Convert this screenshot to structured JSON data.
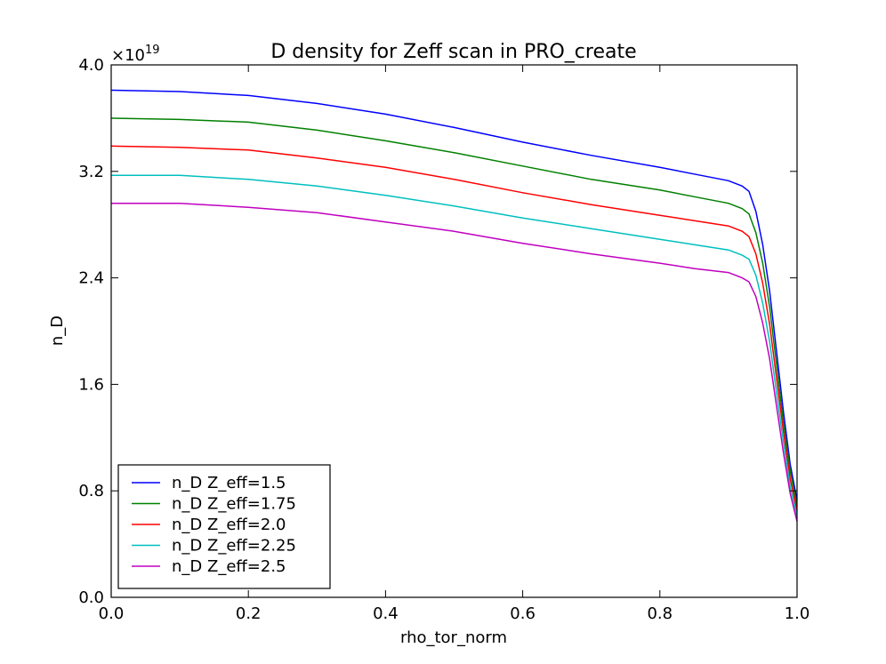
{
  "chart_data": {
    "type": "line",
    "title": "D density for Zeff scan in PRO_create",
    "xlabel": "rho_tor_norm",
    "ylabel": "n_D",
    "y_multiplier": "×10",
    "y_exponent": "19",
    "xlim": [
      0.0,
      1.0
    ],
    "ylim": [
      0.0,
      4.0
    ],
    "xticks": [
      "0.0",
      "0.2",
      "0.4",
      "0.6",
      "0.8",
      "1.0"
    ],
    "yticks": [
      "0.0",
      "0.8",
      "1.6",
      "2.4",
      "3.2",
      "4.0"
    ],
    "grid": false,
    "legend_placement": "lower-left",
    "x": [
      0,
      0.1,
      0.2,
      0.3,
      0.4,
      0.5,
      0.6,
      0.7,
      0.8,
      0.85,
      0.9,
      0.92,
      0.93,
      0.94,
      0.95,
      0.96,
      0.97,
      0.98,
      0.99,
      1.0
    ],
    "series": [
      {
        "name": "n_D Z_eff=1.5",
        "color": "#0000ff",
        "values": [
          3.81,
          3.8,
          3.77,
          3.71,
          3.63,
          3.53,
          3.42,
          3.32,
          3.23,
          3.18,
          3.13,
          3.09,
          3.05,
          2.9,
          2.65,
          2.3,
          1.85,
          1.4,
          1.0,
          0.73
        ]
      },
      {
        "name": "n_D Z_eff=1.75",
        "color": "#008000",
        "values": [
          3.6,
          3.59,
          3.57,
          3.51,
          3.43,
          3.34,
          3.24,
          3.14,
          3.06,
          3.01,
          2.96,
          2.92,
          2.88,
          2.74,
          2.51,
          2.18,
          1.75,
          1.32,
          0.95,
          0.69
        ]
      },
      {
        "name": "n_D Z_eff=2.0",
        "color": "#ff0000",
        "values": [
          3.39,
          3.38,
          3.36,
          3.3,
          3.23,
          3.14,
          3.04,
          2.95,
          2.87,
          2.83,
          2.79,
          2.75,
          2.71,
          2.58,
          2.36,
          2.05,
          1.65,
          1.25,
          0.89,
          0.65
        ]
      },
      {
        "name": "n_D Z_eff=2.25",
        "color": "#00bfbf",
        "values": [
          3.17,
          3.17,
          3.14,
          3.09,
          3.02,
          2.94,
          2.85,
          2.77,
          2.69,
          2.65,
          2.61,
          2.57,
          2.54,
          2.42,
          2.21,
          1.92,
          1.54,
          1.17,
          0.83,
          0.61
        ]
      },
      {
        "name": "n_D Z_eff=2.5",
        "color": "#bf00bf",
        "values": [
          2.96,
          2.96,
          2.93,
          2.89,
          2.82,
          2.75,
          2.66,
          2.58,
          2.51,
          2.47,
          2.44,
          2.4,
          2.37,
          2.26,
          2.06,
          1.79,
          1.44,
          1.09,
          0.78,
          0.57
        ]
      }
    ]
  }
}
